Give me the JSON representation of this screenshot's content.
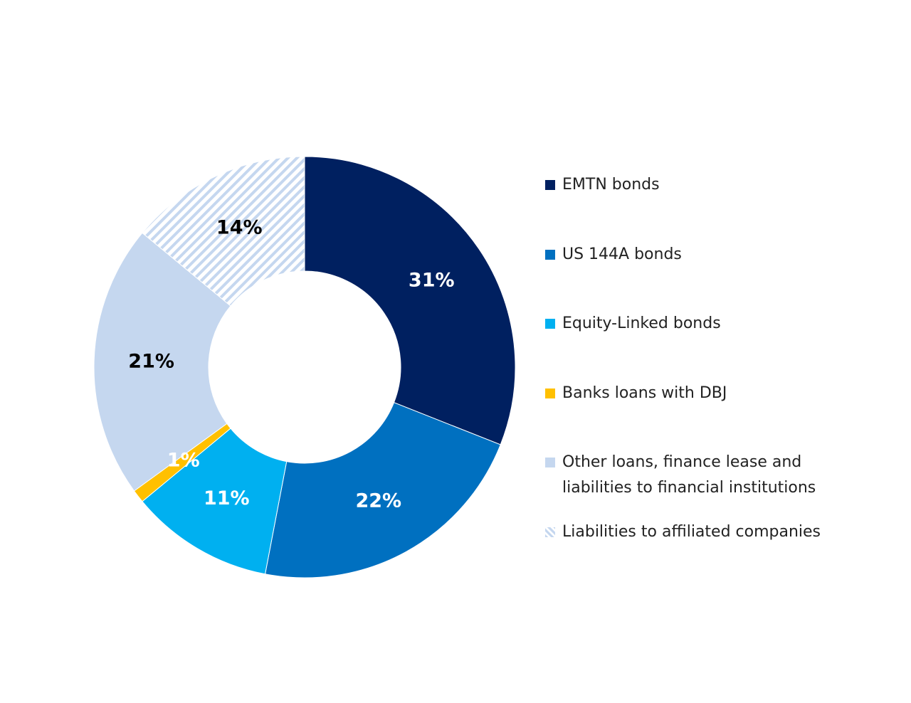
{
  "chart_data": {
    "type": "donut",
    "categories": [
      "EMTN bonds",
      "US 144A bonds",
      "Equity-Linked bonds",
      "Banks loans with DBJ",
      "Other loans, finance lease and liabilities to financial institutions",
      "Liabilities to affiliated companies"
    ],
    "values": [
      31,
      22,
      11,
      1,
      21,
      14
    ],
    "value_labels": [
      "31%",
      "22%",
      "11%",
      "1%",
      "21%",
      "14%"
    ],
    "colors": [
      "#002060",
      "#0070c0",
      "#00b0f0",
      "#ffc000",
      "#c5d7ef",
      "#c5d7ef"
    ],
    "hatch": [
      false,
      false,
      false,
      false,
      false,
      true
    ],
    "label_colors": [
      "#ffffff",
      "#ffffff",
      "#ffffff",
      "#ffffff",
      "#000000",
      "#000000"
    ],
    "legend": "right"
  }
}
